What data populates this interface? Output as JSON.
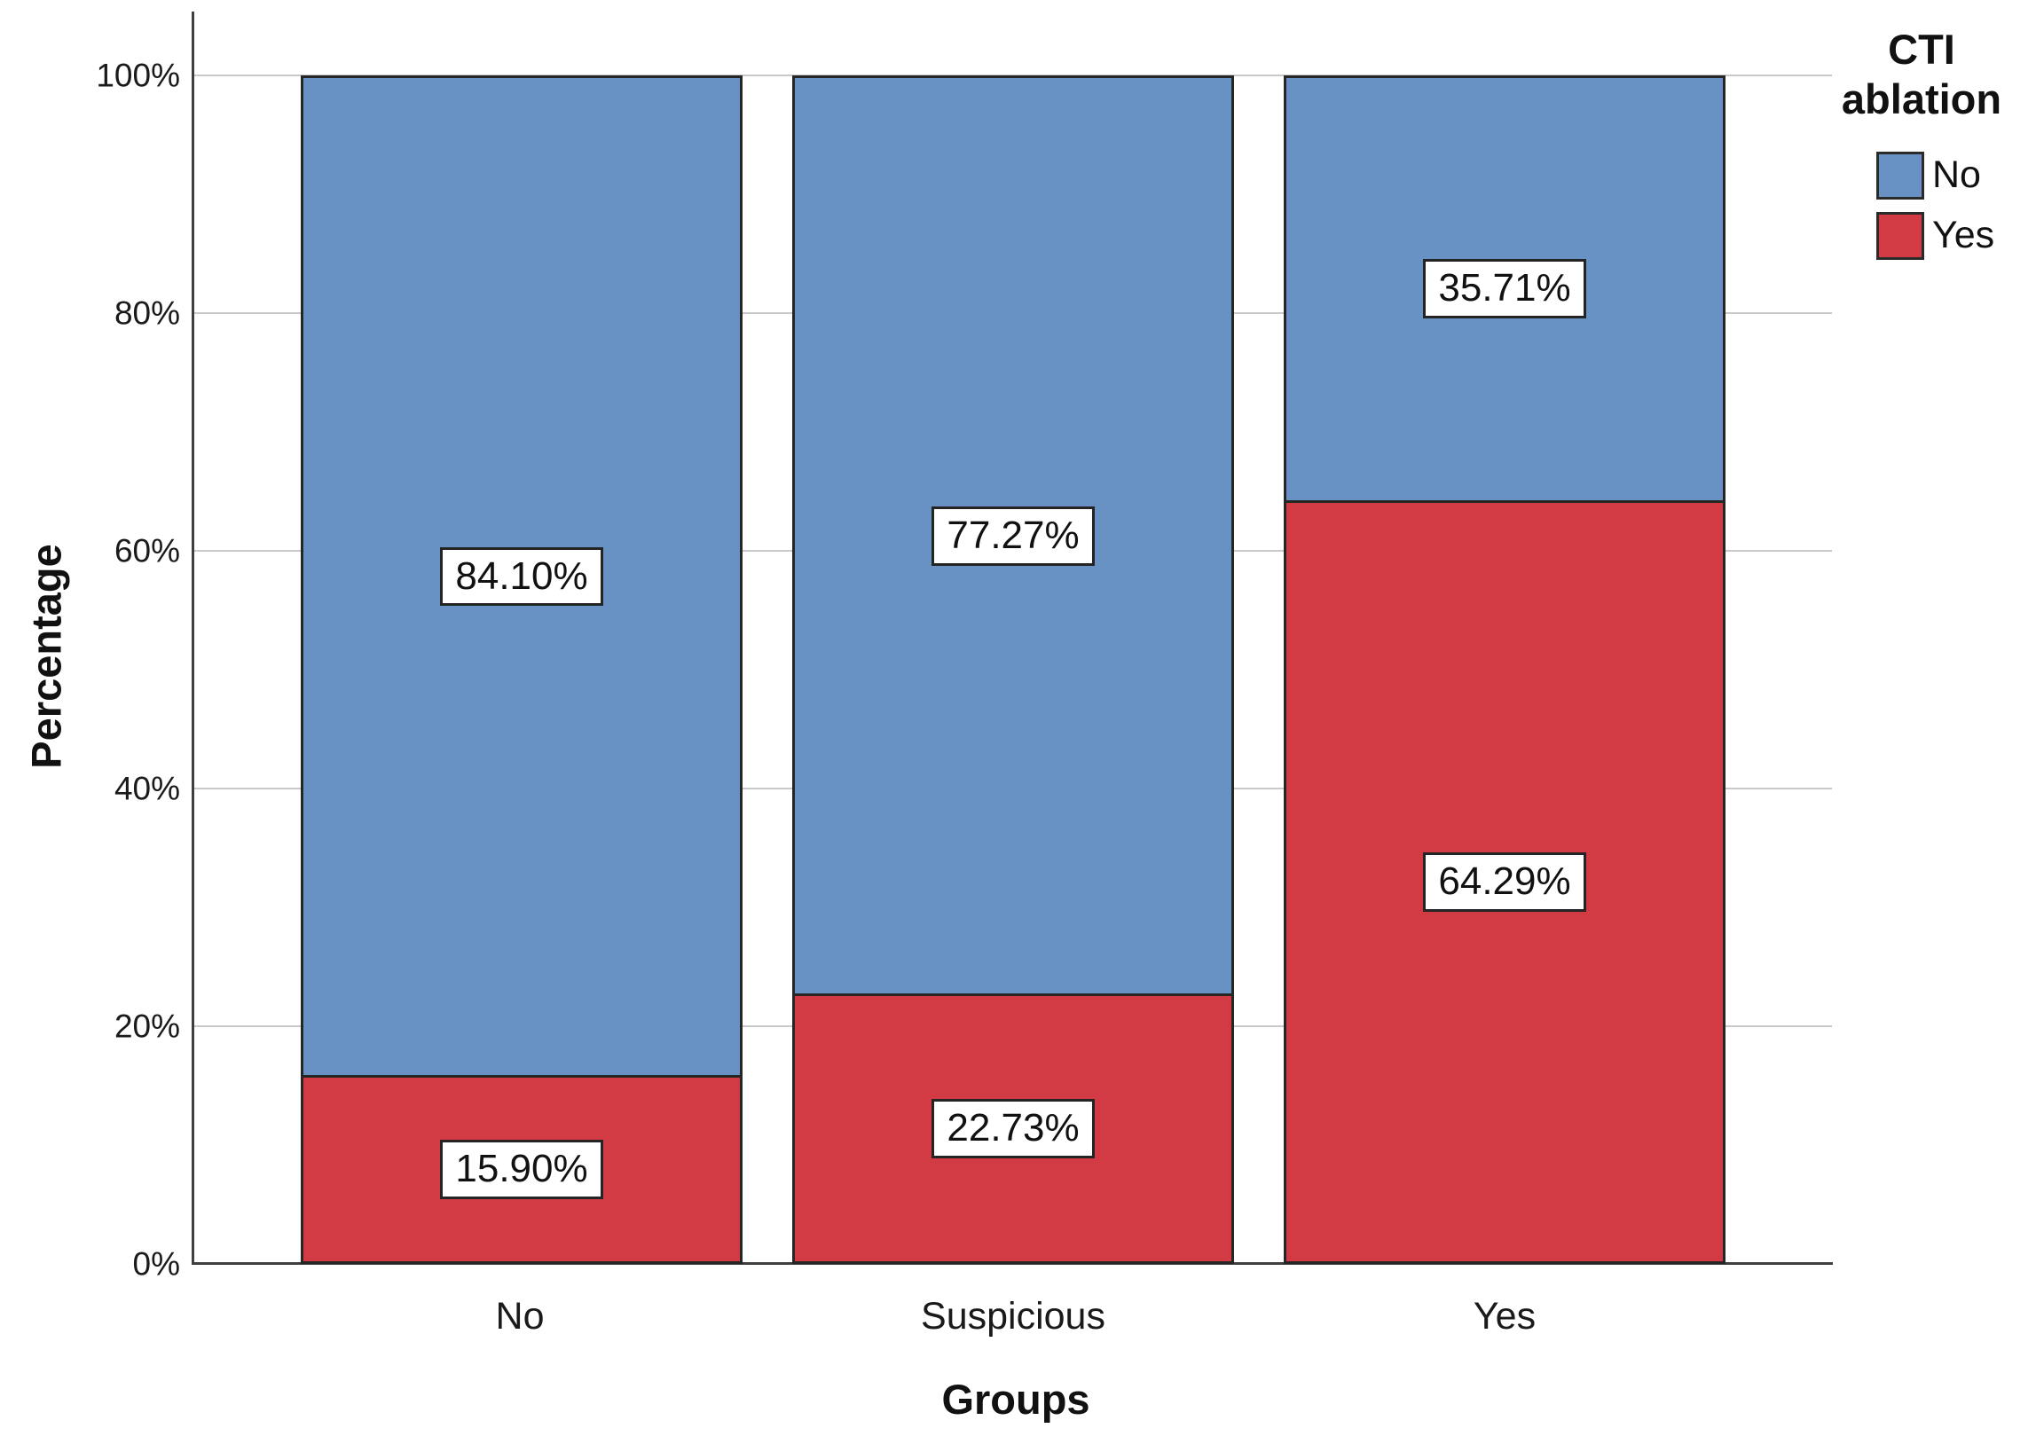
{
  "chart_data": {
    "type": "bar",
    "subtype": "100-percent-stacked-vertical",
    "title": "",
    "xlabel": "Groups",
    "ylabel": "Percentage",
    "categories": [
      "No",
      "Suspicious",
      "Yes"
    ],
    "series": [
      {
        "name": "No",
        "color": "#6892C4",
        "values": [
          84.1,
          77.27,
          35.71
        ],
        "labels": [
          "84.10%",
          "77.27%",
          "35.71%"
        ]
      },
      {
        "name": "Yes",
        "color": "#D23B43",
        "values": [
          15.9,
          22.73,
          64.29
        ],
        "labels": [
          "15.90%",
          "22.73%",
          "64.29%"
        ]
      }
    ],
    "stack_order_top_to_bottom": [
      "No",
      "Yes"
    ],
    "legend": {
      "title": "CTI ablation",
      "position": "top-right"
    },
    "yticks": [
      "0%",
      "20%",
      "40%",
      "60%",
      "80%",
      "100%"
    ],
    "ylim": [
      0,
      100
    ],
    "grid": true
  },
  "colors": {
    "series_no": "#6892C4",
    "series_yes": "#D23B43",
    "gridline": "#C9C9C9",
    "axis": "#3F3F3F",
    "bar_border": "#262626",
    "value_box_bg": "#FFFFFF",
    "value_box_border": "#242424",
    "text": "#111111",
    "background": "#FFFFFF"
  }
}
